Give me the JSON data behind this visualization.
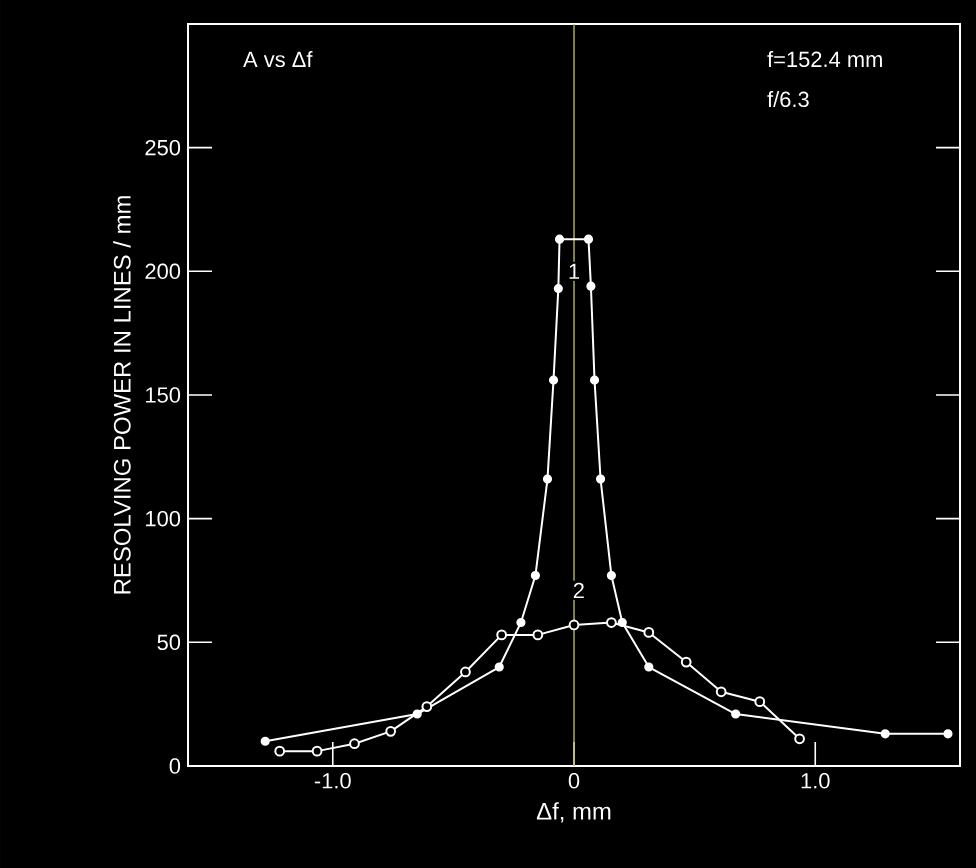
{
  "chart_data": {
    "type": "line",
    "xlabel": "Δf, mm",
    "ylabel": "RESOLVING POWER IN LINES / mm",
    "xlim": [
      -1.6,
      1.6
    ],
    "ylim": [
      0,
      300
    ],
    "xticks": [
      {
        "value": -1.0,
        "label": "-1.0"
      },
      0,
      {
        "value": 1.0,
        "label": "1.0"
      }
    ],
    "yticks": [
      0,
      50,
      100,
      150,
      200,
      250
    ],
    "marker": "circle",
    "line_style": "solid",
    "ref_lines": [
      {
        "axis": "x",
        "value": 0,
        "color": "#b8b860"
      }
    ],
    "annotations": [
      "A vs Δf",
      "f=152.4 mm",
      "f/6.3",
      {
        "text": "1",
        "x": 0,
        "y": 200
      },
      {
        "text": "2",
        "x": 0.02,
        "y": 71
      }
    ],
    "series": [
      {
        "color": "#ffffff",
        "x": [
          -1.28,
          -0.65,
          -0.31,
          -0.22,
          -0.16,
          -0.11,
          -0.085,
          -0.065,
          -0.06,
          0.06,
          0.07,
          0.085,
          0.11,
          0.155,
          0.2,
          0.31,
          0.67,
          1.29,
          1.55
        ],
        "values": [
          10,
          21,
          40,
          58,
          77,
          116,
          156,
          193,
          213,
          213,
          194,
          156,
          116,
          77,
          58,
          40,
          21,
          13,
          13
        ]
      },
      {
        "color": "#ffffff",
        "x": [
          -1.22,
          -1.065,
          -0.91,
          -0.76,
          -0.61,
          -0.45,
          -0.3,
          -0.15,
          0,
          0.155,
          0.31,
          0.465,
          0.61,
          0.77,
          0.935
        ],
        "values": [
          6,
          6,
          9,
          14,
          24,
          38,
          53,
          53,
          57,
          58,
          54,
          42,
          30,
          26,
          11
        ]
      }
    ]
  }
}
